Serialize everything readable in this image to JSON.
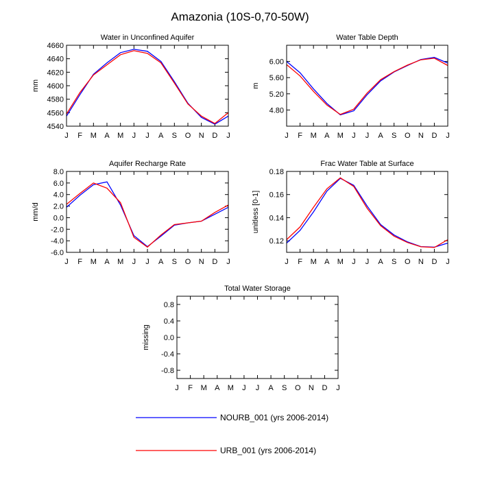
{
  "figure": {
    "title": "Amazonia (10S-0,70-50W)"
  },
  "months": [
    "J",
    "F",
    "M",
    "A",
    "M",
    "J",
    "J",
    "A",
    "S",
    "O",
    "N",
    "D",
    "J"
  ],
  "series_colors": {
    "NOURB_001": "#0000ff",
    "URB_001": "#ff0000"
  },
  "legend": [
    {
      "key": "NOURB_001",
      "label": "NOURB_001 (yrs 2006-2014)",
      "color": "#0000ff"
    },
    {
      "key": "URB_001",
      "label": "URB_001 (yrs 2006-2014)",
      "color": "#ff0000"
    }
  ],
  "chart_data": [
    {
      "type": "line",
      "title": "Water in Unconfined Aquifer",
      "xlabel": "",
      "ylabel": "mm",
      "ylim": [
        4540,
        4660
      ],
      "yticks": [
        4540,
        4560,
        4580,
        4600,
        4620,
        4640,
        4660
      ],
      "ytick_labels": [
        "4540",
        "4560",
        "4580",
        "4600",
        "4620",
        "4640",
        "4660"
      ],
      "series": [
        {
          "name": "NOURB_001",
          "values": [
            4555,
            4587,
            4617,
            4634,
            4649,
            4654,
            4651,
            4636,
            4606,
            4574,
            4553,
            4543,
            4555
          ]
        },
        {
          "name": "URB_001",
          "values": [
            4558,
            4590,
            4616,
            4631,
            4646,
            4652,
            4648,
            4634,
            4604,
            4573,
            4555,
            4544,
            4560
          ]
        }
      ]
    },
    {
      "type": "line",
      "title": "Water Table Depth",
      "xlabel": "",
      "ylabel": "m",
      "ylim": [
        4.4,
        6.4
      ],
      "yticks": [
        4.8,
        5.2,
        5.6,
        6.0
      ],
      "ytick_labels": [
        "4.80",
        "5.20",
        "5.60",
        "6.00"
      ],
      "series": [
        {
          "name": "NOURB_001",
          "values": [
            6.0,
            5.72,
            5.32,
            4.96,
            4.68,
            4.78,
            5.18,
            5.52,
            5.74,
            5.9,
            6.05,
            6.1,
            5.96
          ]
        },
        {
          "name": "URB_001",
          "values": [
            5.92,
            5.64,
            5.26,
            4.92,
            4.69,
            4.82,
            5.22,
            5.55,
            5.75,
            5.91,
            6.04,
            6.08,
            5.9
          ]
        }
      ]
    },
    {
      "type": "line",
      "title": "Aquifer Recharge Rate",
      "xlabel": "",
      "ylabel": "mm/d",
      "ylim": [
        -6,
        8
      ],
      "yticks": [
        -6,
        -4,
        -2,
        0,
        2,
        4,
        6,
        8
      ],
      "ytick_labels": [
        "-6.0",
        "-4.0",
        "-2.0",
        "0.0",
        "2.0",
        "4.0",
        "6.0",
        "8.0"
      ],
      "series": [
        {
          "name": "NOURB_001",
          "values": [
            1.8,
            3.9,
            5.7,
            6.2,
            2.2,
            -3.1,
            -5.0,
            -3.2,
            -1.3,
            -0.9,
            -0.6,
            0.6,
            1.8
          ]
        },
        {
          "name": "URB_001",
          "values": [
            2.3,
            4.2,
            6.0,
            5.1,
            2.6,
            -3.4,
            -5.1,
            -3.0,
            -1.2,
            -0.9,
            -0.6,
            0.9,
            2.2
          ]
        }
      ]
    },
    {
      "type": "line",
      "title": "Frac Water Table at Surface",
      "xlabel": "",
      "ylabel": "unitless [0-1]",
      "ylim": [
        0.11,
        0.18
      ],
      "yticks": [
        0.12,
        0.14,
        0.16,
        0.18
      ],
      "ytick_labels": [
        "0.12",
        "0.14",
        "0.16",
        "0.18"
      ],
      "series": [
        {
          "name": "NOURB_001",
          "values": [
            0.118,
            0.129,
            0.145,
            0.163,
            0.174,
            0.168,
            0.15,
            0.134,
            0.125,
            0.119,
            0.115,
            0.1145,
            0.118
          ]
        },
        {
          "name": "URB_001",
          "values": [
            0.121,
            0.132,
            0.149,
            0.165,
            0.1745,
            0.167,
            0.148,
            0.133,
            0.124,
            0.1185,
            0.1148,
            0.1142,
            0.121
          ]
        }
      ]
    },
    {
      "type": "line",
      "title": "Total Water Storage",
      "xlabel": "",
      "ylabel": "missing",
      "ylim": [
        -1.0,
        1.0
      ],
      "yticks": [
        -0.8,
        -0.4,
        0.0,
        0.4,
        0.8
      ],
      "ytick_labels": [
        "-0.8",
        "-0.4",
        "0.0",
        "0.4",
        "0.8"
      ],
      "series": []
    }
  ]
}
